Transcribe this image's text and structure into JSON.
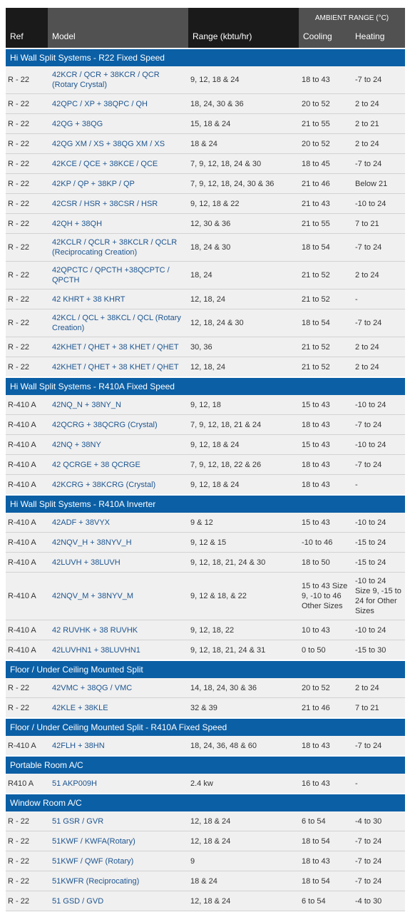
{
  "header": {
    "ambient_range": "AMBIENT RANGE (°C)",
    "ref": "Ref",
    "model": "Model",
    "range": "Range (kbtu/hr)",
    "cooling": "Cooling",
    "heating": "Heating"
  },
  "sections": [
    {
      "title": "Hi Wall Split Systems - R22 Fixed Speed",
      "rows": [
        {
          "ref": "R - 22",
          "model": "42KCR / QCR + 38KCR / QCR (Rotary Crystal)",
          "range": "9, 12, 18 & 24",
          "cooling": "18 to 43",
          "heating": "-7 to 24"
        },
        {
          "ref": "R - 22",
          "model": "42QPC / XP + 38QPC / QH",
          "range": "18, 24, 30 & 36",
          "cooling": "20 to 52",
          "heating": "2 to 24"
        },
        {
          "ref": "R - 22",
          "model": "42QG + 38QG",
          "range": "15, 18 & 24",
          "cooling": "21 to 55",
          "heating": "2 to 21"
        },
        {
          "ref": "R - 22",
          "model": "42QG XM / XS + 38QG XM / XS",
          "range": "18 & 24",
          "cooling": "20 to 52",
          "heating": "2 to 24"
        },
        {
          "ref": "R - 22",
          "model": "42KCE / QCE + 38KCE / QCE",
          "range": "7, 9, 12, 18, 24 & 30",
          "cooling": "18 to 45",
          "heating": "-7 to 24"
        },
        {
          "ref": "R - 22",
          "model": "42KP / QP + 38KP / QP",
          "range": "7, 9, 12, 18, 24, 30 & 36",
          "cooling": "21 to 46",
          "heating": "Below 21"
        },
        {
          "ref": "R - 22",
          "model": "42CSR / HSR + 38CSR / HSR",
          "range": "9, 12, 18 & 22",
          "cooling": "21 to 43",
          "heating": "-10 to 24"
        },
        {
          "ref": "R - 22",
          "model": "42QH + 38QH",
          "range": "12, 30 & 36",
          "cooling": "21 to 55",
          "heating": "7 to 21"
        },
        {
          "ref": "R - 22",
          "model": "42KCLR / QCLR + 38KCLR / QCLR (Reciprocating Creation)",
          "range": "18, 24 & 30",
          "cooling": "18 to 54",
          "heating": "-7 to 24"
        },
        {
          "ref": "R - 22",
          "model": "42QPCTC / QPCTH +38QCPTC / QPCTH",
          "range": "18, 24",
          "cooling": "21 to 52",
          "heating": "2 to 24"
        },
        {
          "ref": "R - 22",
          "model": "42 KHRT + 38 KHRT",
          "range": "12, 18, 24",
          "cooling": "21 to 52",
          "heating": "-"
        },
        {
          "ref": "R - 22",
          "model": "42KCL / QCL + 38KCL / QCL (Rotary Creation)",
          "range": "12, 18, 24 & 30",
          "cooling": "18 to 54",
          "heating": "-7 to 24"
        },
        {
          "ref": "R - 22",
          "model": "42KHET / QHET + 38 KHET / QHET",
          "range": "30, 36",
          "cooling": "21 to 52",
          "heating": "2 to 24"
        },
        {
          "ref": "R - 22",
          "model": "42KHET / QHET + 38 KHET / QHET",
          "range": "12, 18, 24",
          "cooling": "21 to 52",
          "heating": "2 to 24"
        }
      ]
    },
    {
      "title": "Hi Wall Split Systems - R410A Fixed Speed",
      "rows": [
        {
          "ref": "R-410 A",
          "model": "42NQ_N + 38NY_N",
          "range": "9, 12, 18",
          "cooling": "15 to 43",
          "heating": "-10 to 24"
        },
        {
          "ref": "R-410 A",
          "model": "42QCRG + 38QCRG (Crystal)",
          "range": "7,  9, 12, 18, 21 & 24",
          "cooling": "18 to 43",
          "heating": "-7 to 24"
        },
        {
          "ref": "R-410 A",
          "model": "42NQ + 38NY",
          "range": "9, 12, 18 & 24",
          "cooling": "15 to 43",
          "heating": "-10 to 24"
        },
        {
          "ref": "R-410 A",
          "model": "42 QCRGE + 38 QCRGE",
          "range": "7, 9, 12, 18, 22 & 26",
          "cooling": "18 to 43",
          "heating": "-7 to 24"
        },
        {
          "ref": "R-410 A",
          "model": "42KCRG + 38KCRG (Crystal)",
          "range": "9, 12, 18 & 24",
          "cooling": "18 to 43",
          "heating": "-"
        }
      ]
    },
    {
      "title": "Hi Wall Split Systems - R410A Inverter",
      "rows": [
        {
          "ref": "R-410 A",
          "model": "42ADF + 38VYX",
          "range": "9 & 12",
          "cooling": "15 to 43",
          "heating": "-10 to 24"
        },
        {
          "ref": "R-410 A",
          "model": "42NQV_H + 38NYV_H",
          "range": "9, 12 & 15",
          "cooling": "-10 to 46",
          "heating": "-15 to 24"
        },
        {
          "ref": "R-410 A",
          "model": "42LUVH + 38LUVH",
          "range": "9, 12, 18, 21, 24 & 30",
          "cooling": "18 to 50",
          "heating": "-15 to 24"
        },
        {
          "ref": "R-410 A",
          "model": "42NQV_M + 38NYV_M",
          "range": "9, 12 & 18, & 22",
          "cooling": "15 to 43 Size 9,  -10 to 46 Other Sizes",
          "heating": "-10 to 24 Size 9, -15 to 24 for Other Sizes"
        },
        {
          "ref": "R-410 A",
          "model": "42 RUVHK + 38 RUVHK",
          "range": "9, 12, 18, 22",
          "cooling": "10 to 43",
          "heating": "-10 to 24"
        },
        {
          "ref": "R-410 A",
          "model": "42LUVHN1 + 38LUVHN1",
          "range": "9, 12, 18, 21, 24 & 31",
          "cooling": "0 to 50",
          "heating": "-15 to 30"
        }
      ]
    },
    {
      "title": "Floor / Under Ceiling Mounted Split",
      "rows": [
        {
          "ref": "R - 22",
          "model": "42VMC + 38QG / VMC",
          "range": "14, 18, 24, 30 & 36",
          "cooling": "20 to 52",
          "heating": "2 to 24"
        },
        {
          "ref": "R - 22",
          "model": "42KLE + 38KLE",
          "range": "32 & 39",
          "cooling": "21 to 46",
          "heating": "7 to 21"
        }
      ]
    },
    {
      "title": "Floor / Under Ceiling Mounted Split - R410A Fixed Speed",
      "rows": [
        {
          "ref": "R-410 A",
          "model": "42FLH + 38HN",
          "range": "18, 24, 36, 48 & 60",
          "cooling": "18 to 43",
          "heating": "-7 to 24"
        }
      ]
    },
    {
      "title": "Portable Room A/C",
      "rows": [
        {
          "ref": "R410 A",
          "model": "51 AKP009H",
          "range": "2.4 kw",
          "cooling": "16 to 43",
          "heating": "-"
        }
      ]
    },
    {
      "title": "Window Room A/C",
      "rows": [
        {
          "ref": "R - 22",
          "model": "51 GSR / GVR",
          "range": "12, 18 & 24",
          "cooling": "6 to 54",
          "heating": "-4 to 30"
        },
        {
          "ref": "R - 22",
          "model": "51KWF / KWFA(Rotary)",
          "range": "12, 18 & 24",
          "cooling": "18 to 54",
          "heating": "-7 to 24"
        },
        {
          "ref": "R - 22",
          "model": "51KWF / QWF (Rotary)",
          "range": "9",
          "cooling": "18 to 43",
          "heating": "-7 to 24"
        },
        {
          "ref": "R - 22",
          "model": "51KWFR (Reciprocating)",
          "range": "18 & 24",
          "cooling": "18 to 54",
          "heating": "-7 to 24"
        },
        {
          "ref": "R - 22",
          "model": "51 GSD / GVD",
          "range": "12, 18 & 24",
          "cooling": "6 to 54",
          "heating": "-4 to 30"
        }
      ]
    }
  ]
}
